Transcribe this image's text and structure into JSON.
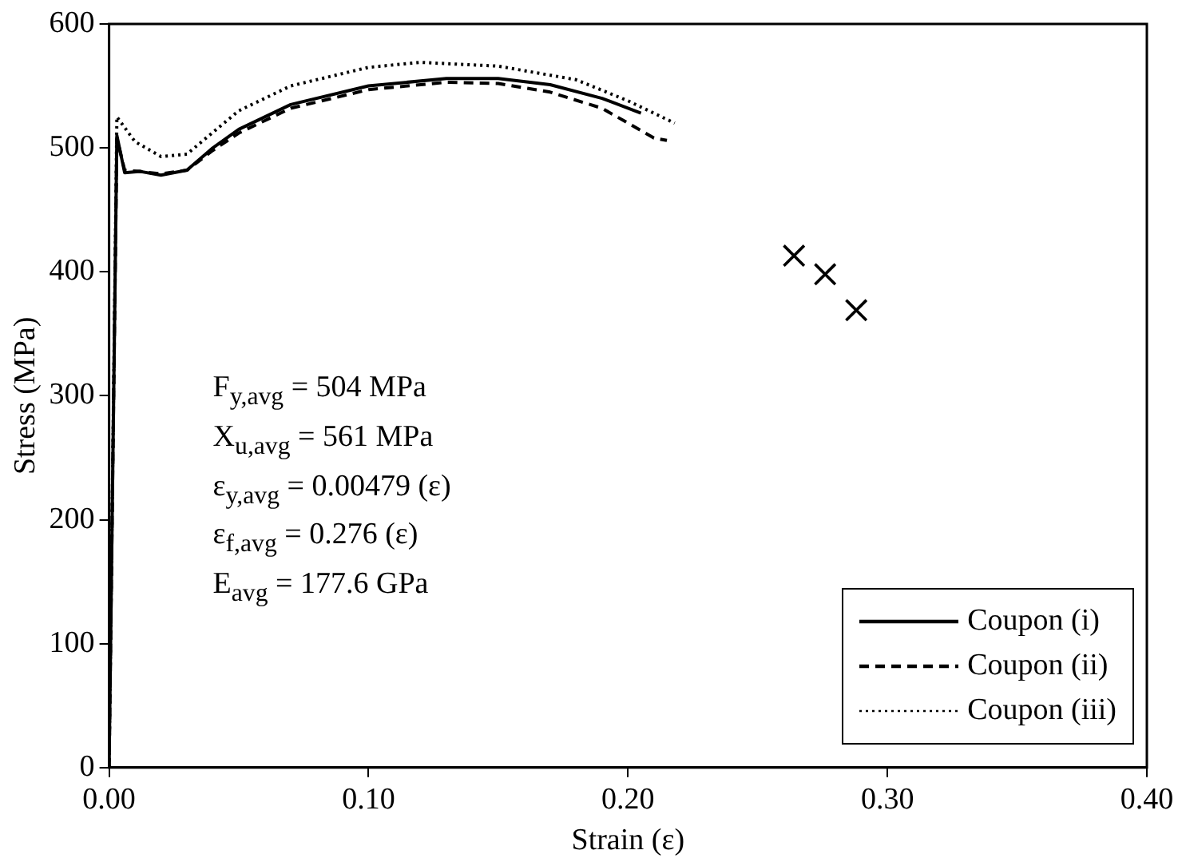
{
  "chart_data": {
    "type": "line",
    "xlabel": "Strain (ε)",
    "ylabel": "Stress (MPa)",
    "xlim": [
      0,
      0.4
    ],
    "xticks": [
      {
        "value": 0,
        "label": "0.00"
      },
      {
        "value": 0.1,
        "label": "0.10"
      },
      {
        "value": 0.2,
        "label": "0.20"
      },
      {
        "value": 0.3,
        "label": "0.30"
      },
      {
        "value": 0.4,
        "label": "0.40"
      }
    ],
    "ylim": [
      0,
      600
    ],
    "yticks": [
      0,
      100,
      200,
      300,
      400,
      500,
      600
    ],
    "grid": false,
    "legend": "bottom right",
    "marker": "none",
    "annotations": [
      "F$_{y,avg}$ = 504 MPa",
      "X$_{u,avg}$ = 561 MPa",
      "ε$_{y,avg}$ = 0.00479 (ε)",
      "ε$_{f,avg}$ = 0.276 (ε)",
      "E$_{avg}$ = 177.6 GPa"
    ],
    "series": [
      {
        "name": "Coupon (i)",
        "color": "#000000",
        "line_style": "solid",
        "x": [
          0,
          0.003,
          0.006,
          0.012,
          0.02,
          0.03,
          0.04,
          0.05,
          0.07,
          0.1,
          0.13,
          0.15,
          0.17,
          0.19,
          0.205
        ],
        "values": [
          0,
          510,
          480,
          481,
          478,
          482,
          500,
          515,
          535,
          550,
          556,
          556,
          551,
          540,
          528
        ]
      },
      {
        "name": "Coupon (ii)",
        "color": "#000000",
        "line_style": "dashed",
        "x": [
          0,
          0.003,
          0.006,
          0.012,
          0.02,
          0.03,
          0.04,
          0.05,
          0.07,
          0.1,
          0.13,
          0.15,
          0.17,
          0.19,
          0.21,
          0.215
        ],
        "values": [
          0,
          508,
          482,
          481,
          479,
          482,
          498,
          512,
          532,
          547,
          553,
          552,
          545,
          532,
          508,
          506
        ]
      },
      {
        "name": "Coupon (iii)",
        "color": "#000000",
        "line_style": "dotted",
        "x": [
          0,
          0.003,
          0.01,
          0.02,
          0.03,
          0.05,
          0.07,
          0.1,
          0.12,
          0.15,
          0.18,
          0.2,
          0.218
        ],
        "values": [
          0,
          525,
          505,
          493,
          495,
          530,
          550,
          565,
          569,
          566,
          555,
          538,
          520
        ]
      },
      {
        "type": "scatter",
        "color": "#000000",
        "marker": "cross",
        "x": [
          0.264,
          0.276,
          0.288
        ],
        "values": [
          413,
          398,
          369
        ]
      }
    ]
  }
}
